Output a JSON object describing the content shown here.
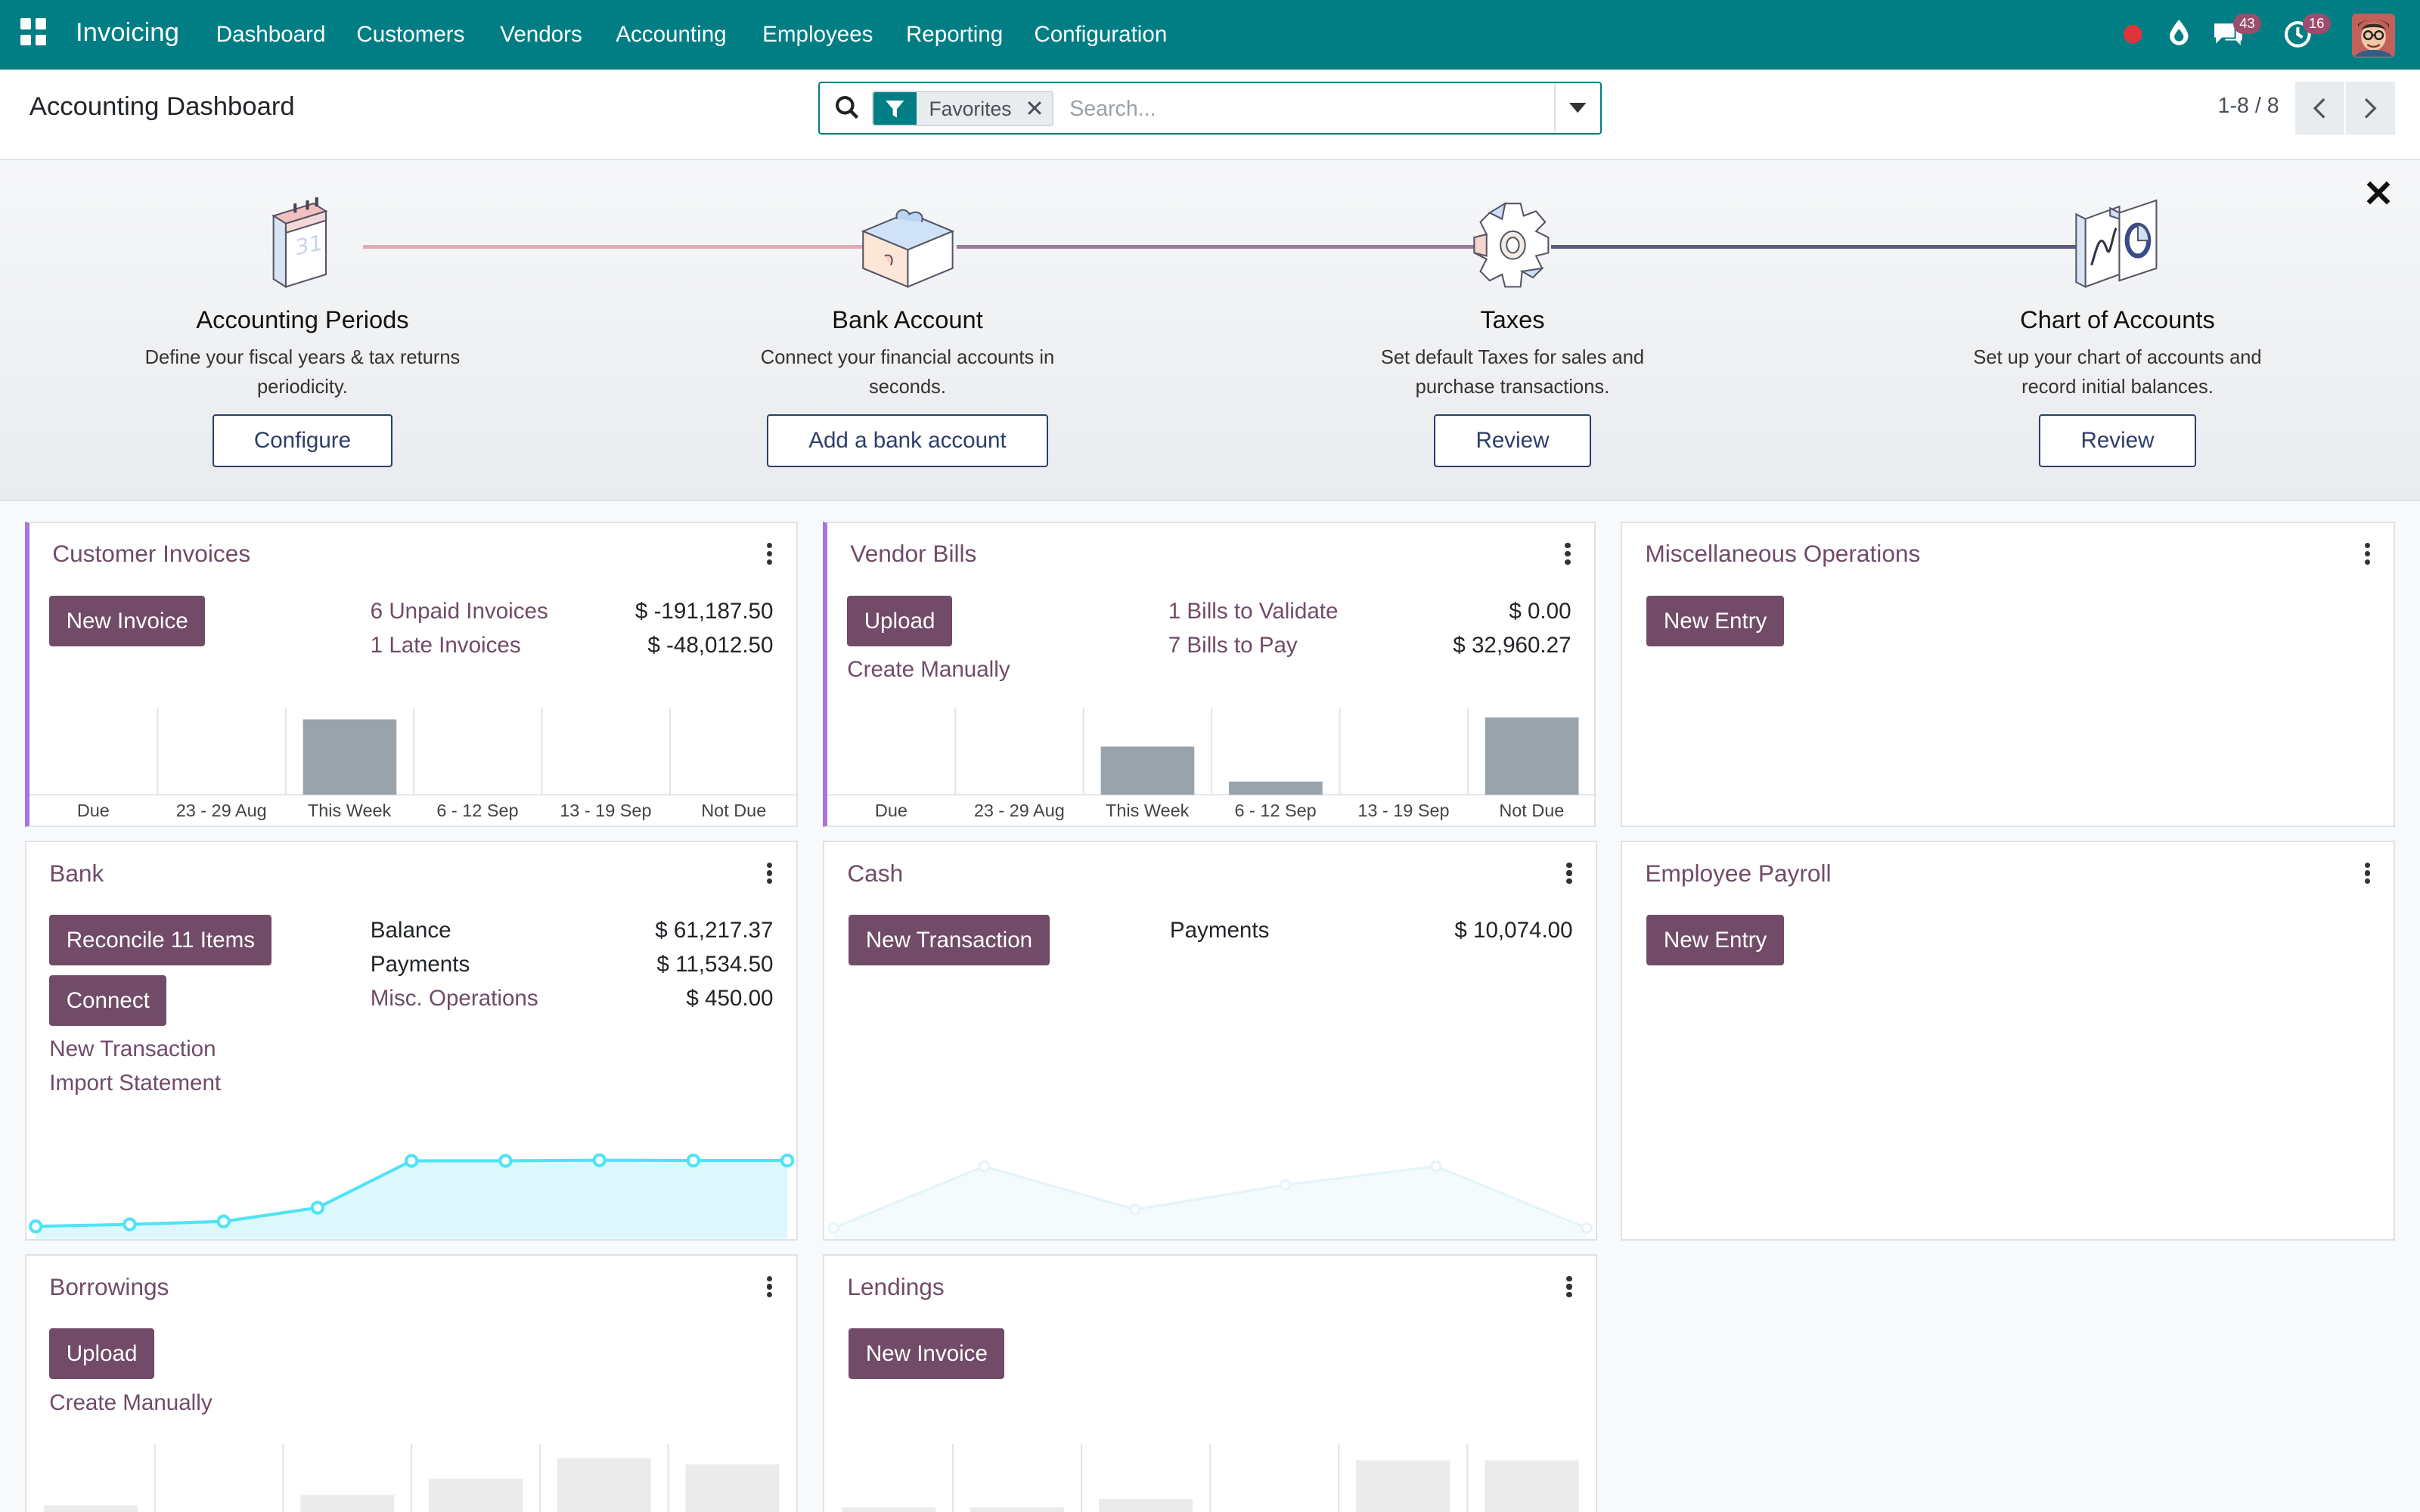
{
  "navbar": {
    "app_name": "Invoicing",
    "menu": [
      "Dashboard",
      "Customers",
      "Vendors",
      "Accounting",
      "Employees",
      "Reporting",
      "Configuration"
    ],
    "messages_count": "43",
    "activities_count": "16",
    "icons": [
      "apps-grid-icon",
      "status-dot-icon",
      "drop-icon",
      "chat-icon",
      "clock-icon",
      "user-avatar"
    ]
  },
  "control": {
    "title": "Accounting Dashboard",
    "facet_label": "Favorites",
    "search_placeholder": "Search...",
    "pager": "1-8 / 8"
  },
  "onboarding": {
    "steps": [
      {
        "title": "Accounting Periods",
        "desc": "Define your fiscal years & tax returns periodicity.",
        "button": "Configure",
        "icon": "calendar-icon"
      },
      {
        "title": "Bank Account",
        "desc": "Connect your financial accounts in seconds.",
        "button": "Add a bank account",
        "icon": "bank-puzzle-icon"
      },
      {
        "title": "Taxes",
        "desc": "Set default Taxes for sales and purchase transactions.",
        "button": "Review",
        "icon": "gear-icon"
      },
      {
        "title": "Chart of Accounts",
        "desc": "Set up your chart of accounts and record initial balances.",
        "button": "Review",
        "icon": "chart-doc-icon"
      }
    ],
    "line_colors": [
      "#e6a8b4",
      "#9a7c99",
      "#5a5a82"
    ]
  },
  "colors": {
    "navbar": "#017e84",
    "primary": "#714b67",
    "bar": "#9aa3ab",
    "accent": "#a974e0",
    "line": "#4fe3f5"
  },
  "cards": {
    "customer_invoices": {
      "title": "Customer Invoices",
      "button": "New Invoice",
      "rows": [
        {
          "label": "6 Unpaid Invoices",
          "amount": "$ -191,187.50"
        },
        {
          "label": "1 Late Invoices",
          "amount": "$ -48,012.50"
        }
      ]
    },
    "vendor_bills": {
      "title": "Vendor Bills",
      "button": "Upload",
      "link": "Create Manually",
      "rows": [
        {
          "label": "1 Bills to Validate",
          "amount": "$ 0.00"
        },
        {
          "label": "7 Bills to Pay",
          "amount": "$ 32,960.27"
        }
      ]
    },
    "misc": {
      "title": "Miscellaneous Operations",
      "button": "New Entry"
    },
    "bank": {
      "title": "Bank",
      "button_reconcile": "Reconcile 11 Items",
      "button_connect": "Connect",
      "links": [
        "New Transaction",
        "Import Statement"
      ],
      "rows": [
        {
          "label": "Balance",
          "amount": "$ 61,217.37"
        },
        {
          "label": "Payments",
          "amount": "$ 11,534.50"
        },
        {
          "label": "Misc. Operations",
          "amount": "$ 450.00"
        }
      ]
    },
    "cash": {
      "title": "Cash",
      "button": "New Transaction",
      "rows": [
        {
          "label": "Payments",
          "amount": "$ 10,074.00"
        }
      ]
    },
    "payroll": {
      "title": "Employee Payroll",
      "button": "New Entry"
    },
    "borrowings": {
      "title": "Borrowings",
      "button": "Upload",
      "link": "Create Manually"
    },
    "lendings": {
      "title": "Lendings",
      "button": "New Invoice"
    }
  },
  "chart_data": [
    {
      "type": "bar",
      "chart": "customer-invoices",
      "categories": [
        "Due",
        "23 - 29 Aug",
        "This Week",
        "6 - 12 Sep",
        "13 - 19 Sep",
        "Not Due"
      ],
      "values": [
        0,
        0,
        48012.5,
        0,
        0,
        0
      ],
      "ylim": [
        0,
        55000
      ],
      "grid": false
    },
    {
      "type": "bar",
      "chart": "vendor-bills",
      "categories": [
        "Due",
        "23 - 29 Aug",
        "This Week",
        "6 - 12 Sep",
        "13 - 19 Sep",
        "Not Due"
      ],
      "values": [
        0,
        0,
        10600,
        2900,
        0,
        17000
      ],
      "ylim": [
        0,
        19000
      ],
      "grid": false
    },
    {
      "type": "area",
      "chart": "bank",
      "values": [
        0,
        120,
        290,
        1100,
        3860,
        3860,
        3900,
        3880,
        3880
      ],
      "ylim": [
        0,
        4000
      ]
    },
    {
      "type": "area",
      "chart": "cash",
      "values": [
        0,
        50,
        15,
        35,
        50,
        0
      ],
      "ylim": [
        0,
        60
      ],
      "sample": true
    },
    {
      "type": "bar",
      "chart": "borrowings",
      "values": [
        1,
        0,
        1.5,
        2.3,
        3.3,
        3
      ],
      "ylim": [
        0,
        4
      ],
      "sample": true
    },
    {
      "type": "bar",
      "chart": "lendings",
      "values": [
        0.9,
        0.9,
        1.3,
        0.4,
        3.2,
        3.2
      ],
      "ylim": [
        0,
        4
      ],
      "sample": true
    }
  ]
}
